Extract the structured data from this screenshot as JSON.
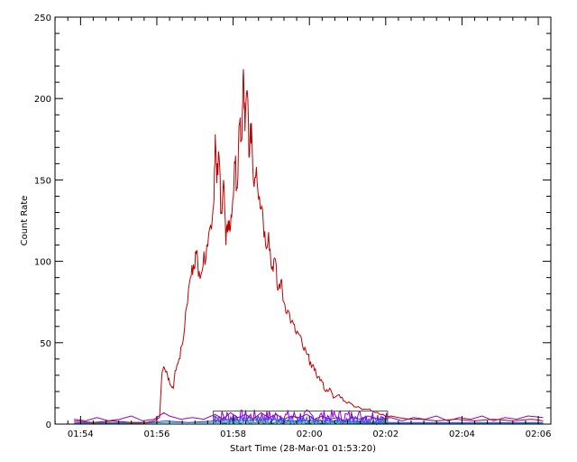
{
  "chart_data": {
    "type": "line",
    "title": "",
    "xlabel": "Start Time (28-Mar-01 01:53:20)",
    "ylabel": "Count Rate",
    "xlim_minutes": [
      0.0,
      13.0
    ],
    "ylim": [
      0,
      250
    ],
    "x_ticks": [
      {
        "label": "01:54",
        "min": 0.67
      },
      {
        "label": "01:56",
        "min": 2.67
      },
      {
        "label": "01:58",
        "min": 4.67
      },
      {
        "label": "02:00",
        "min": 6.67
      },
      {
        "label": "02:02",
        "min": 8.67
      },
      {
        "label": "02:04",
        "min": 10.67
      },
      {
        "label": "02:06",
        "min": 12.67
      }
    ],
    "y_ticks": [
      0,
      50,
      100,
      150,
      200,
      250
    ],
    "grid": false,
    "legend": "none",
    "series": [
      {
        "color": "#c00000",
        "points": [
          [
            0.5,
            2
          ],
          [
            1.0,
            1
          ],
          [
            1.5,
            2
          ],
          [
            2.0,
            1
          ],
          [
            2.4,
            1
          ],
          [
            2.6,
            2
          ],
          [
            2.74,
            4
          ],
          [
            2.8,
            30
          ],
          [
            2.86,
            35
          ],
          [
            2.95,
            30
          ],
          [
            3.02,
            24
          ],
          [
            3.1,
            22
          ],
          [
            3.15,
            33
          ],
          [
            3.25,
            40
          ],
          [
            3.35,
            50
          ],
          [
            3.45,
            72
          ],
          [
            3.55,
            90
          ],
          [
            3.63,
            98
          ],
          [
            3.7,
            105
          ],
          [
            3.78,
            94
          ],
          [
            3.88,
            97
          ],
          [
            3.98,
            110
          ],
          [
            4.08,
            122
          ],
          [
            4.16,
            135
          ],
          [
            4.2,
            178
          ],
          [
            4.24,
            148
          ],
          [
            4.3,
            165
          ],
          [
            4.36,
            130
          ],
          [
            4.42,
            150
          ],
          [
            4.48,
            110
          ],
          [
            4.54,
            125
          ],
          [
            4.6,
            120
          ],
          [
            4.66,
            138
          ],
          [
            4.72,
            160
          ],
          [
            4.78,
            145
          ],
          [
            4.84,
            185
          ],
          [
            4.9,
            175
          ],
          [
            4.94,
            218
          ],
          [
            4.98,
            180
          ],
          [
            5.04,
            205
          ],
          [
            5.1,
            165
          ],
          [
            5.15,
            185
          ],
          [
            5.2,
            150
          ],
          [
            5.28,
            158
          ],
          [
            5.36,
            140
          ],
          [
            5.44,
            132
          ],
          [
            5.52,
            110
          ],
          [
            5.6,
            118
          ],
          [
            5.68,
            95
          ],
          [
            5.76,
            102
          ],
          [
            5.84,
            82
          ],
          [
            5.92,
            88
          ],
          [
            6.0,
            75
          ],
          [
            6.1,
            70
          ],
          [
            6.2,
            63
          ],
          [
            6.3,
            57
          ],
          [
            6.4,
            55
          ],
          [
            6.5,
            47
          ],
          [
            6.6,
            43
          ],
          [
            6.7,
            38
          ],
          [
            6.8,
            33
          ],
          [
            6.9,
            29
          ],
          [
            7.0,
            26
          ],
          [
            7.1,
            20
          ],
          [
            7.2,
            22
          ],
          [
            7.3,
            16
          ],
          [
            7.45,
            18
          ],
          [
            7.6,
            14
          ],
          [
            7.8,
            12
          ],
          [
            8.0,
            10
          ],
          [
            8.2,
            9
          ],
          [
            8.4,
            7
          ],
          [
            8.6,
            6
          ],
          [
            8.8,
            5
          ],
          [
            9.0,
            4
          ],
          [
            9.3,
            3
          ],
          [
            9.6,
            3
          ],
          [
            10.0,
            2
          ],
          [
            10.5,
            3
          ],
          [
            11.0,
            2
          ],
          [
            11.5,
            3
          ],
          [
            12.0,
            2
          ],
          [
            12.5,
            3
          ],
          [
            12.8,
            2
          ]
        ]
      },
      {
        "color": "#9400d3",
        "points": [
          [
            0.5,
            3
          ],
          [
            0.8,
            2
          ],
          [
            1.1,
            4
          ],
          [
            1.4,
            2
          ],
          [
            1.7,
            3
          ],
          [
            2.0,
            5
          ],
          [
            2.3,
            2
          ],
          [
            2.6,
            3
          ],
          [
            2.85,
            7
          ],
          [
            3.0,
            5
          ],
          [
            3.3,
            3
          ],
          [
            3.6,
            4
          ],
          [
            3.9,
            3
          ],
          [
            4.2,
            6
          ],
          [
            4.4,
            3
          ],
          [
            4.6,
            7
          ],
          [
            4.8,
            4
          ],
          [
            5.0,
            6
          ],
          [
            5.2,
            3
          ],
          [
            5.4,
            7
          ],
          [
            5.6,
            4
          ],
          [
            5.8,
            6
          ],
          [
            6.0,
            3
          ],
          [
            6.2,
            5
          ],
          [
            6.4,
            4
          ],
          [
            6.6,
            6
          ],
          [
            6.8,
            3
          ],
          [
            7.0,
            5
          ],
          [
            7.2,
            3
          ],
          [
            7.4,
            4
          ],
          [
            7.6,
            2
          ],
          [
            7.8,
            4
          ],
          [
            8.0,
            3
          ],
          [
            8.2,
            5
          ],
          [
            8.5,
            3
          ],
          [
            8.8,
            4
          ],
          [
            9.1,
            2
          ],
          [
            9.4,
            4
          ],
          [
            9.7,
            3
          ],
          [
            10.0,
            5
          ],
          [
            10.3,
            2
          ],
          [
            10.6,
            4
          ],
          [
            10.9,
            3
          ],
          [
            11.2,
            5
          ],
          [
            11.5,
            2
          ],
          [
            11.8,
            4
          ],
          [
            12.1,
            3
          ],
          [
            12.4,
            5
          ],
          [
            12.8,
            4
          ]
        ]
      },
      {
        "color": "#3a4aff",
        "points": [
          [
            0.5,
            1
          ],
          [
            1.0,
            1
          ],
          [
            1.5,
            1
          ],
          [
            2.0,
            1
          ],
          [
            2.5,
            1
          ],
          [
            2.9,
            2
          ],
          [
            3.5,
            1
          ],
          [
            4.2,
            2
          ],
          [
            4.6,
            3
          ],
          [
            5.0,
            2
          ],
          [
            5.6,
            3
          ],
          [
            6.2,
            2
          ],
          [
            6.8,
            2
          ],
          [
            7.5,
            2
          ],
          [
            8.2,
            1
          ],
          [
            9.0,
            1
          ],
          [
            10.0,
            1
          ],
          [
            11.0,
            1
          ],
          [
            12.0,
            1
          ],
          [
            12.8,
            1
          ]
        ]
      },
      {
        "color": "#1aa3a3",
        "points": [
          [
            0.5,
            0.5
          ],
          [
            2.0,
            0.5
          ],
          [
            3.0,
            1
          ],
          [
            4.0,
            1
          ],
          [
            5.0,
            1
          ],
          [
            6.0,
            1
          ],
          [
            7.0,
            1
          ],
          [
            8.0,
            0.5
          ],
          [
            9.0,
            0.5
          ],
          [
            10.0,
            0.5
          ],
          [
            11.0,
            0.5
          ],
          [
            12.0,
            0.5
          ],
          [
            12.8,
            0.5
          ]
        ]
      }
    ],
    "bursts": [
      {
        "color": "#9400d3",
        "x_range": [
          4.15,
          8.72
        ],
        "amplitude": 9
      },
      {
        "color": "#3a4aff",
        "x_range": [
          4.15,
          8.72
        ],
        "amplitude": 5
      },
      {
        "color": "#1aa3a3",
        "x_range": [
          4.15,
          8.72
        ],
        "amplitude": 3
      }
    ],
    "marker_box": {
      "x_range": [
        4.15,
        8.72
      ],
      "y_range": [
        0,
        8
      ],
      "color": "#555555"
    }
  }
}
